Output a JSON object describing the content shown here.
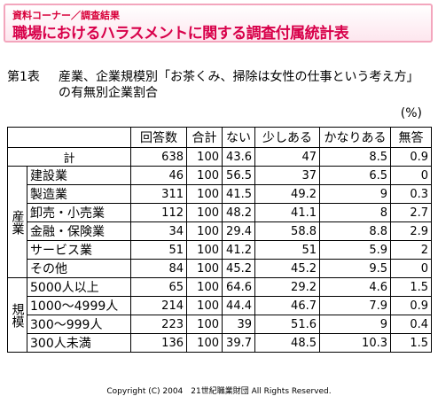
{
  "header": {
    "category": "資料コーナー／調査結果",
    "title": "職場におけるハラスメントに関する調査付属統計表"
  },
  "caption": {
    "number": "第1表",
    "text": "産業、企業規模別「お茶くみ、掃除は女性の仕事という考え方」の有無別企業割合"
  },
  "unit": "(%)",
  "table": {
    "columns": [
      "回答数",
      "合計",
      "ない",
      "少しある",
      "かなりある",
      "無答"
    ],
    "total": {
      "label": "計",
      "values": [
        "638",
        "100",
        "43.6",
        "47",
        "8.5",
        "0.9"
      ]
    },
    "groups": [
      {
        "label": "産業",
        "rows": [
          {
            "label": "建設業",
            "values": [
              "46",
              "100",
              "56.5",
              "37",
              "6.5",
              "0"
            ]
          },
          {
            "label": "製造業",
            "values": [
              "311",
              "100",
              "41.5",
              "49.2",
              "9",
              "0.3"
            ]
          },
          {
            "label": "卸売・小売業",
            "values": [
              "112",
              "100",
              "48.2",
              "41.1",
              "8",
              "2.7"
            ]
          },
          {
            "label": "金融・保険業",
            "values": [
              "34",
              "100",
              "29.4",
              "58.8",
              "8.8",
              "2.9"
            ]
          },
          {
            "label": "サービス業",
            "values": [
              "51",
              "100",
              "41.2",
              "51",
              "5.9",
              "2"
            ]
          },
          {
            "label": "その他",
            "values": [
              "84",
              "100",
              "45.2",
              "45.2",
              "9.5",
              "0"
            ]
          }
        ]
      },
      {
        "label": "規模",
        "rows": [
          {
            "label": "5000人以上",
            "values": [
              "65",
              "100",
              "64.6",
              "29.2",
              "4.6",
              "1.5"
            ]
          },
          {
            "label": "1000～4999人",
            "values": [
              "214",
              "100",
              "44.4",
              "46.7",
              "7.9",
              "0.9"
            ]
          },
          {
            "label": "300～999人",
            "values": [
              "223",
              "100",
              "39",
              "51.6",
              "9",
              "0.4"
            ]
          },
          {
            "label": "300人未満",
            "values": [
              "136",
              "100",
              "39.7",
              "48.5",
              "10.3",
              "1.5"
            ]
          }
        ]
      }
    ]
  },
  "footer": "Copyright (C) 2004　21世紀職業財団 All Rights Reserved."
}
